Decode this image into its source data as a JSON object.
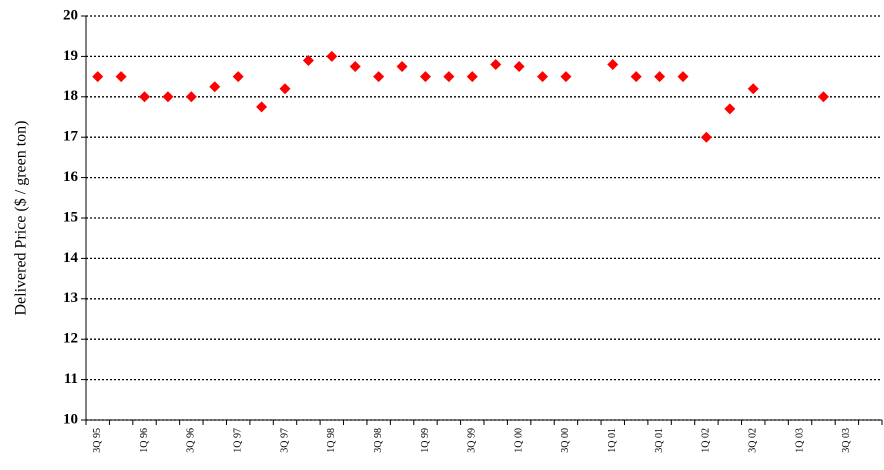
{
  "chart_data": {
    "type": "scatter",
    "y_label": "Delivered Price ($ / green ton)",
    "categories": [
      "3Q 95",
      null,
      "1Q 96",
      null,
      "3Q 96",
      null,
      "1Q 97",
      null,
      "3Q 97",
      null,
      "1Q 98",
      null,
      "3Q 98",
      null,
      "1Q 99",
      null,
      "3Q 99",
      null,
      "1Q 00",
      null,
      "3Q 00",
      null,
      "1Q 01",
      null,
      "3Q 01",
      null,
      "1Q 02",
      null,
      "3Q 02",
      null,
      "1Q 03",
      null,
      "3Q 03",
      null
    ],
    "values": [
      18.5,
      18.5,
      18,
      18,
      18,
      18.25,
      18.5,
      17.75,
      18.2,
      18.9,
      19,
      18.75,
      18.5,
      18.75,
      18.5,
      18.5,
      18.5,
      18.8,
      18.75,
      18.5,
      18.5,
      null,
      18.8,
      18.5,
      18.5,
      18.5,
      17,
      17.7,
      18.2,
      null,
      null,
      18,
      null,
      null
    ],
    "color": "#ff0000",
    "ylim": [
      10,
      20
    ],
    "yticks": [
      10,
      11,
      12,
      13,
      14,
      15,
      16,
      17,
      18,
      19,
      20
    ],
    "grid": true
  }
}
